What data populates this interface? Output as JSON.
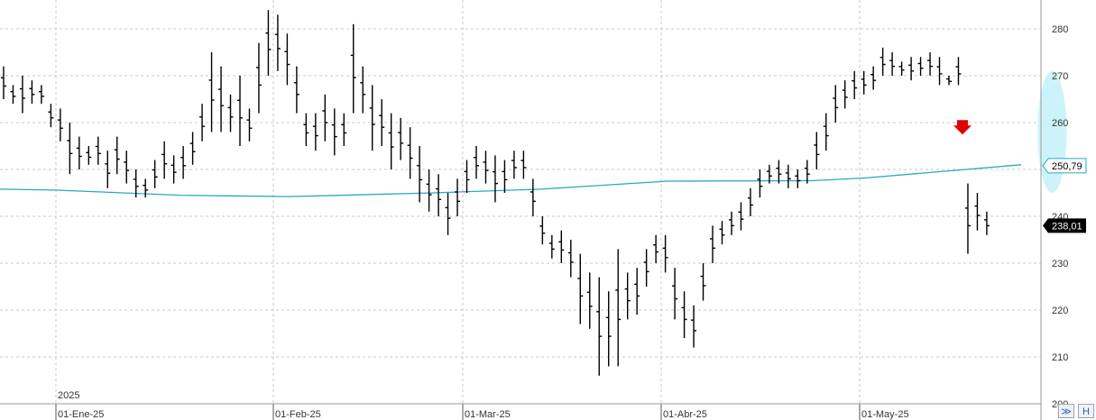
{
  "chart_data": {
    "type": "ohlc",
    "yticks": [
      "280",
      "270",
      "260",
      "250",
      "240",
      "230",
      "220",
      "210",
      "200"
    ],
    "ylim": [
      200,
      286
    ],
    "xticks": [
      {
        "label": "01-Ene-25",
        "index": 0
      },
      {
        "label": "01-Feb-25",
        "index": 23
      },
      {
        "label": "01-Mar-25",
        "index": 43
      },
      {
        "label": "01-Abr-25",
        "index": 64
      },
      {
        "label": "01-May-25",
        "index": 85
      }
    ],
    "year_label": "2025",
    "last_price_tag": "238,01",
    "ma_tag": "250,79",
    "colors": {
      "bars": "#000000",
      "moving_average": "#2aa7c7",
      "tag_bg": "#000000",
      "ma_tag_border": "#2aa7c7",
      "highlight_ellipse": "#c8f2fa",
      "signal_arrow": "#e00000"
    },
    "signal_arrow": {
      "type": "down",
      "bar_index": 100,
      "price": 259
    },
    "highlight_region": {
      "bar_index": 105,
      "price_top": 271,
      "price_bottom": 245
    },
    "series": [
      {
        "name": "",
        "values": []
      }
    ],
    "ohlc": [
      [
        272,
        265
      ],
      [
        268,
        264
      ],
      [
        270,
        262
      ],
      [
        269,
        264
      ],
      [
        268,
        264
      ],
      [
        264,
        259
      ],
      [
        263,
        256
      ],
      [
        260,
        249
      ],
      [
        257,
        250
      ],
      [
        255,
        251
      ],
      [
        257,
        251
      ],
      [
        254,
        246
      ],
      [
        257,
        249
      ],
      [
        254,
        247
      ],
      [
        250,
        244
      ],
      [
        248,
        244
      ],
      [
        252,
        246
      ],
      [
        256,
        248
      ],
      [
        253,
        247
      ],
      [
        255,
        248
      ],
      [
        258,
        251
      ],
      [
        264,
        256
      ],
      [
        275,
        258
      ],
      [
        272,
        258
      ],
      [
        266,
        258
      ],
      [
        270,
        255
      ],
      [
        263,
        256
      ],
      [
        277,
        262
      ],
      [
        284,
        270
      ],
      [
        283,
        271
      ],
      [
        279,
        268
      ],
      [
        272,
        262
      ],
      [
        262,
        255
      ],
      [
        262,
        254
      ],
      [
        266,
        256
      ],
      [
        263,
        253
      ],
      [
        262,
        255
      ],
      [
        281,
        262
      ],
      [
        272,
        262
      ],
      [
        268,
        254
      ],
      [
        265,
        255
      ],
      [
        262,
        250
      ],
      [
        261,
        252
      ],
      [
        259,
        248
      ],
      [
        255,
        243
      ],
      [
        250,
        241
      ],
      [
        249,
        240
      ],
      [
        245,
        236
      ],
      [
        248,
        240
      ],
      [
        252,
        245
      ],
      [
        255,
        248
      ],
      [
        254,
        247
      ],
      [
        253,
        243
      ],
      [
        252,
        245
      ],
      [
        254,
        248
      ],
      [
        254,
        248
      ],
      [
        248,
        240
      ],
      [
        240,
        234
      ],
      [
        236,
        231
      ],
      [
        237,
        230
      ],
      [
        235,
        227
      ],
      [
        232,
        217
      ],
      [
        228,
        216
      ],
      [
        227,
        206
      ],
      [
        224,
        208
      ],
      [
        233,
        208
      ],
      [
        228,
        218
      ],
      [
        229,
        219
      ],
      [
        233,
        225
      ],
      [
        236,
        230
      ],
      [
        236,
        228
      ],
      [
        229,
        218
      ],
      [
        224,
        214
      ],
      [
        221,
        212
      ],
      [
        230,
        222
      ],
      [
        238,
        230
      ],
      [
        239,
        234
      ],
      [
        241,
        236
      ],
      [
        243,
        237
      ],
      [
        246,
        240
      ],
      [
        250,
        244
      ],
      [
        251,
        247
      ],
      [
        252,
        247
      ],
      [
        251,
        246
      ],
      [
        250,
        246
      ],
      [
        252,
        247
      ],
      [
        258,
        250
      ],
      [
        262,
        254
      ],
      [
        268,
        260
      ],
      [
        269,
        263
      ],
      [
        271,
        265
      ],
      [
        271,
        266
      ],
      [
        272,
        267
      ],
      [
        276,
        270
      ],
      [
        275,
        270
      ],
      [
        273,
        270
      ],
      [
        274,
        269
      ],
      [
        274,
        270
      ],
      [
        275,
        270
      ],
      [
        274,
        268
      ],
      [
        270,
        268
      ],
      [
        274,
        268
      ],
      [
        247,
        232
      ],
      [
        245,
        237
      ],
      [
        241,
        236
      ]
    ]
  }
}
